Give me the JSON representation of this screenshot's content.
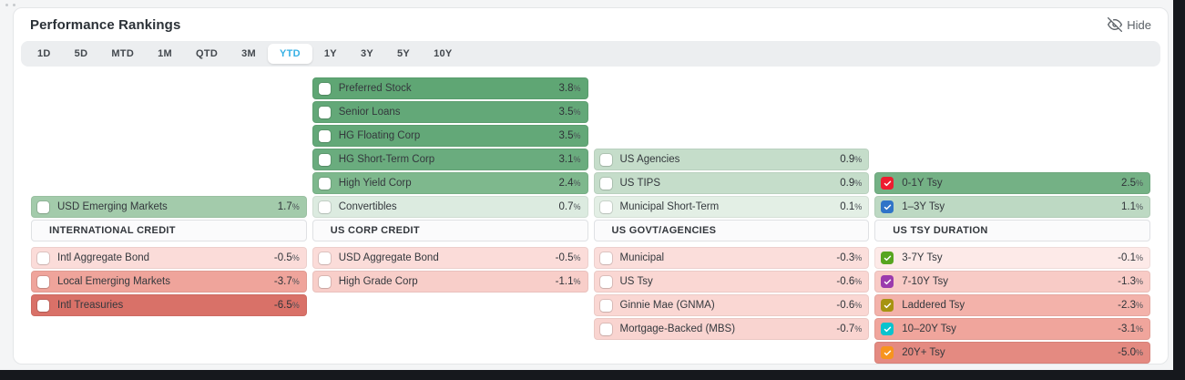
{
  "title": "Performance Rankings",
  "header": {
    "hide_label": "Hide"
  },
  "tabs": {
    "items": [
      "1D",
      "5D",
      "MTD",
      "1M",
      "QTD",
      "3M",
      "YTD",
      "1Y",
      "3Y",
      "5Y",
      "10Y"
    ],
    "selected": "YTD"
  },
  "unit": "%",
  "colors": {
    "accent_tab": "#38b1e5",
    "dark_frame": "#16181d",
    "page_background": "#f4f5f6"
  },
  "columns": [
    {
      "header": "INTERNATIONAL CREDIT",
      "positives": [
        {
          "label": "USD Emerging Markets",
          "value": "1.7",
          "color": "#a3cbab",
          "checked": false
        }
      ],
      "negatives": [
        {
          "label": "Intl Aggregate Bond",
          "value": "-0.5",
          "color": "#fbdcd9",
          "checked": false
        },
        {
          "label": "Local Emerging Markets",
          "value": "-3.7",
          "color": "#efa49b",
          "checked": false
        },
        {
          "label": "Intl Treasuries",
          "value": "-6.5",
          "color": "#d97168",
          "checked": false
        }
      ]
    },
    {
      "header": "US CORP CREDIT",
      "positives": [
        {
          "label": "Preferred Stock",
          "value": "3.8",
          "color": "#5fa674",
          "checked": false
        },
        {
          "label": "Senior Loans",
          "value": "3.5",
          "color": "#63a878",
          "checked": false
        },
        {
          "label": "HG Floating Corp",
          "value": "3.5",
          "color": "#63a878",
          "checked": false
        },
        {
          "label": "HG Short-Term Corp",
          "value": "3.1",
          "color": "#6aac7e",
          "checked": false
        },
        {
          "label": "High Yield Corp",
          "value": "2.4",
          "color": "#7eb88d",
          "checked": false
        },
        {
          "label": "Convertibles",
          "value": "0.7",
          "color": "#dcebe0",
          "checked": false
        }
      ],
      "negatives": [
        {
          "label": "USD Aggregate Bond",
          "value": "-0.5",
          "color": "#fbdcd9",
          "checked": false
        },
        {
          "label": "High Grade Corp",
          "value": "-1.1",
          "color": "#f8cec9",
          "checked": false
        }
      ]
    },
    {
      "header": "US GOVT/AGENCIES",
      "positives": [
        {
          "label": "US Agencies",
          "value": "0.9",
          "color": "#c5ddca",
          "checked": false
        },
        {
          "label": "US TIPS",
          "value": "0.9",
          "color": "#c5ddca",
          "checked": false
        },
        {
          "label": "Municipal Short-Term",
          "value": "0.1",
          "color": "#e3efe5",
          "checked": false
        }
      ],
      "negatives": [
        {
          "label": "Municipal",
          "value": "-0.3",
          "color": "#fbdedb",
          "checked": false
        },
        {
          "label": "US Tsy",
          "value": "-0.6",
          "color": "#fad7d3",
          "checked": false
        },
        {
          "label": "Ginnie Mae (GNMA)",
          "value": "-0.6",
          "color": "#fad7d3",
          "checked": false
        },
        {
          "label": "Mortgage-Backed (MBS)",
          "value": "-0.7",
          "color": "#f9d4d0",
          "checked": false
        }
      ]
    },
    {
      "header": "US TSY DURATION",
      "positives": [
        {
          "label": "0-1Y Tsy",
          "value": "2.5",
          "color": "#74b185",
          "checked": true,
          "check_color": "#ee1d30"
        },
        {
          "label": "1–3Y Tsy",
          "value": "1.1",
          "color": "#bdd9c3",
          "checked": true,
          "check_color": "#2f74c8"
        }
      ],
      "negatives": [
        {
          "label": "3-7Y Tsy",
          "value": "-0.1",
          "color": "#fdeae8",
          "checked": true,
          "check_color": "#57a51f"
        },
        {
          "label": "7-10Y Tsy",
          "value": "-1.3",
          "color": "#f8cbc6",
          "checked": true,
          "check_color": "#9b3bad"
        },
        {
          "label": "Laddered Tsy",
          "value": "-2.3",
          "color": "#f3b2aa",
          "checked": true,
          "check_color": "#a69310"
        },
        {
          "label": "10–20Y Tsy",
          "value": "-3.1",
          "color": "#f0a59c",
          "checked": true,
          "check_color": "#09c3ce"
        },
        {
          "label": "20Y+ Tsy",
          "value": "-5.0",
          "color": "#e48a81",
          "checked": true,
          "check_color": "#f7941e"
        }
      ]
    }
  ]
}
